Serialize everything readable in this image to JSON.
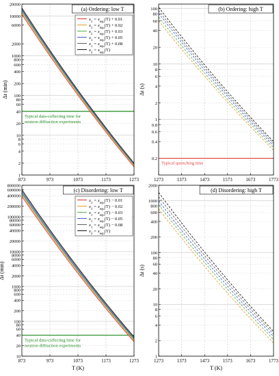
{
  "chart_data": [
    {
      "id": "a",
      "type": "line",
      "title": "(a) Ordering: low T",
      "xlabel": "T (K)",
      "ylabel": "Δt (min)",
      "xlim": [
        873,
        1273
      ],
      "ylim": [
        1,
        20000
      ],
      "yscale": "log",
      "xticks": [
        "873",
        "973",
        "1073",
        "1173",
        "1273"
      ],
      "yticks": [
        {
          "v": 1,
          "label": "1"
        },
        {
          "v": 2,
          "label": "2"
        },
        {
          "v": 4,
          "label": "4"
        },
        {
          "v": 6,
          "label": "6"
        },
        {
          "v": 8,
          "label": "8"
        },
        {
          "v": 10,
          "label": "10"
        },
        {
          "v": 20,
          "label": "20"
        },
        {
          "v": 40,
          "label": "40"
        },
        {
          "v": 60,
          "label": "60"
        },
        {
          "v": 80,
          "label": "80"
        },
        {
          "v": 100,
          "label": "100"
        },
        {
          "v": 200,
          "label": "200"
        },
        {
          "v": 400,
          "label": "400"
        },
        {
          "v": 600,
          "label": "600"
        },
        {
          "v": 800,
          "label": "800"
        },
        {
          "v": 1000,
          "label": "1000"
        },
        {
          "v": 2000,
          "label": "2000"
        },
        {
          "v": 6000,
          "label": "6000"
        },
        {
          "v": 10000,
          "label": "10000"
        },
        {
          "v": 20000,
          "label": "20000"
        }
      ],
      "legend": {
        "position": "top-right",
        "entries": [
          {
            "lhs": "x",
            "lsub": "1",
            "mid": " = x",
            "rsub": "equ",
            "rest": "(T) + 0.01",
            "color": "#e03c3c"
          },
          {
            "lhs": "x",
            "lsub": "1",
            "mid": " = x",
            "rsub": "equ",
            "rest": "(T) + 0.02",
            "color": "#e7a23c"
          },
          {
            "lhs": "x",
            "lsub": "1",
            "mid": " = x",
            "rsub": "equ",
            "rest": "(T) + 0.03",
            "color": "#5ab552"
          },
          {
            "lhs": "x",
            "lsub": "1",
            "mid": " = x",
            "rsub": "equ",
            "rest": "(T) + 0.05",
            "color": "#4d63d6"
          },
          {
            "lhs": "x",
            "lsub": "1",
            "mid": " = x",
            "rsub": "equ",
            "rest": "(T) + 0.08",
            "color": "#666666"
          },
          {
            "lhs": "x",
            "lsub": "2",
            "mid": " = x",
            "rsub": "equ",
            "rest": "(T)",
            "color": "#222222"
          }
        ]
      },
      "series": [
        {
          "color": "#e03c3c",
          "dashed": false,
          "x": [
            873,
            1273
          ],
          "y": [
            11000,
            1.6
          ]
        },
        {
          "color": "#e7a23c",
          "dashed": false,
          "x": [
            873,
            1273
          ],
          "y": [
            12000,
            1.7
          ]
        },
        {
          "color": "#5ab552",
          "dashed": false,
          "x": [
            873,
            1273
          ],
          "y": [
            13000,
            1.8
          ]
        },
        {
          "color": "#4d63d6",
          "dashed": false,
          "x": [
            873,
            1273
          ],
          "y": [
            14000,
            1.85
          ]
        },
        {
          "color": "#666666",
          "dashed": false,
          "x": [
            873,
            1273
          ],
          "y": [
            15000,
            1.9
          ]
        },
        {
          "color": "#222222",
          "dashed": false,
          "x": [
            873,
            1273
          ],
          "y": [
            16000,
            2.0
          ]
        }
      ],
      "reference": {
        "value": 40,
        "color": "#1e8a1e",
        "label": [
          "Typical data-collecting time for",
          "neutron diffraction experiments"
        ]
      }
    },
    {
      "id": "b",
      "type": "line",
      "title": "(b) Ordering: high T",
      "xlabel": "",
      "ylabel": "Δt (s)",
      "xlim": [
        1273,
        1773
      ],
      "ylim": [
        0.1,
        120
      ],
      "yscale": "log",
      "xticks": [
        "1273",
        "1373",
        "1473",
        "1573",
        "1673",
        "1773"
      ],
      "yticks": [
        {
          "v": 0.2,
          "label": "0.2"
        },
        {
          "v": 0.4,
          "label": "0.4"
        },
        {
          "v": 0.6,
          "label": "0.6"
        },
        {
          "v": 0.8,
          "label": "0.8"
        },
        {
          "v": 1,
          "label": "1"
        },
        {
          "v": 2,
          "label": "2"
        },
        {
          "v": 4,
          "label": "4"
        },
        {
          "v": 6,
          "label": "6"
        },
        {
          "v": 8,
          "label": "8"
        },
        {
          "v": 10,
          "label": "10"
        },
        {
          "v": 20,
          "label": "20"
        },
        {
          "v": 40,
          "label": "40"
        },
        {
          "v": 60,
          "label": "60"
        },
        {
          "v": 80,
          "label": "80"
        },
        {
          "v": 100,
          "label": "100"
        }
      ],
      "series": [
        {
          "color": "#e7a23c",
          "dashed": true,
          "x": [
            1273,
            1773
          ],
          "y": [
            60,
            0.28
          ]
        },
        {
          "color": "#5ab552",
          "dashed": true,
          "x": [
            1273,
            1773
          ],
          "y": [
            70,
            0.31
          ]
        },
        {
          "color": "#4d63d6",
          "dashed": true,
          "x": [
            1273,
            1773
          ],
          "y": [
            82,
            0.34
          ]
        },
        {
          "color": "#666666",
          "dashed": true,
          "x": [
            1273,
            1773
          ],
          "y": [
            92,
            0.37
          ]
        },
        {
          "color": "#222222",
          "dashed": true,
          "x": [
            1273,
            1773
          ],
          "y": [
            105,
            0.4
          ]
        }
      ],
      "reference": {
        "value": 0.2,
        "color": "#e03c3c",
        "label": [
          "Typical quenching time"
        ]
      }
    },
    {
      "id": "c",
      "type": "line",
      "title": "(c) Disordering: low T",
      "xlabel": "T (K)",
      "ylabel": "Δt (min)",
      "xlim": [
        873,
        1273
      ],
      "ylim": [
        10,
        800000
      ],
      "yscale": "log",
      "xticks": [
        "873",
        "973",
        "1073",
        "1173",
        "1273"
      ],
      "yticks": [
        {
          "v": 10,
          "label": "10"
        },
        {
          "v": 20,
          "label": "20"
        },
        {
          "v": 40,
          "label": "40"
        },
        {
          "v": 60,
          "label": "60"
        },
        {
          "v": 80,
          "label": "80"
        },
        {
          "v": 100,
          "label": "100"
        },
        {
          "v": 200,
          "label": "200"
        },
        {
          "v": 400,
          "label": "400"
        },
        {
          "v": 600,
          "label": "600"
        },
        {
          "v": 800,
          "label": "800"
        },
        {
          "v": 1000,
          "label": "1000"
        },
        {
          "v": 2000,
          "label": "2000"
        },
        {
          "v": 4000,
          "label": "4000"
        },
        {
          "v": 6000,
          "label": "6000"
        },
        {
          "v": 8000,
          "label": "8000"
        },
        {
          "v": 10000,
          "label": "10000"
        },
        {
          "v": 20000,
          "label": "20000"
        },
        {
          "v": 40000,
          "label": "40000"
        },
        {
          "v": 60000,
          "label": "60000"
        },
        {
          "v": 80000,
          "label": "80000"
        },
        {
          "v": 100000,
          "label": "100000"
        },
        {
          "v": 200000,
          "label": "200000"
        },
        {
          "v": 400000,
          "label": "400000"
        },
        {
          "v": 600000,
          "label": "600000"
        },
        {
          "v": 800000,
          "label": "800000"
        }
      ],
      "legend": {
        "position": "top-right",
        "entries": [
          {
            "lhs": "x",
            "lsub": "1",
            "mid": " = x",
            "rsub": "equ",
            "rest": "(T) − 0.01",
            "color": "#e03c3c"
          },
          {
            "lhs": "x",
            "lsub": "1",
            "mid": " = x",
            "rsub": "equ",
            "rest": "(T) − 0.02",
            "color": "#e7a23c"
          },
          {
            "lhs": "x",
            "lsub": "1",
            "mid": " = x",
            "rsub": "equ",
            "rest": "(T) − 0.03",
            "color": "#5ab552"
          },
          {
            "lhs": "x",
            "lsub": "1",
            "mid": " = x",
            "rsub": "equ",
            "rest": "(T) − 0.05",
            "color": "#4d63d6"
          },
          {
            "lhs": "x",
            "lsub": "1",
            "mid": " = x",
            "rsub": "equ",
            "rest": "(T) − 0.08",
            "color": "#666666"
          },
          {
            "lhs": "x",
            "lsub": "2",
            "mid": " = x",
            "rsub": "equ",
            "rest": "(T)",
            "color": "#222222"
          }
        ]
      },
      "series": [
        {
          "color": "#e03c3c",
          "dashed": false,
          "x": [
            873,
            1273
          ],
          "y": [
            380000,
            26
          ]
        },
        {
          "color": "#e7a23c",
          "dashed": false,
          "x": [
            873,
            1273
          ],
          "y": [
            420000,
            28
          ]
        },
        {
          "color": "#5ab552",
          "dashed": false,
          "x": [
            873,
            1273
          ],
          "y": [
            460000,
            30
          ]
        },
        {
          "color": "#4d63d6",
          "dashed": false,
          "x": [
            873,
            1273
          ],
          "y": [
            500000,
            32
          ]
        },
        {
          "color": "#666666",
          "dashed": false,
          "x": [
            873,
            1273
          ],
          "y": [
            550000,
            34
          ]
        },
        {
          "color": "#222222",
          "dashed": false,
          "x": [
            873,
            1273
          ],
          "y": [
            600000,
            36
          ]
        }
      ],
      "reference": {
        "value": 40,
        "color": "#1e8a1e",
        "label": [
          "Typical data-collecting time for",
          "neutron diffraction experiments"
        ]
      }
    },
    {
      "id": "d",
      "type": "line",
      "title": "(d) Disordering: high T",
      "xlabel": "T (K)",
      "ylabel": "Δt (s)",
      "xlim": [
        1273,
        1773
      ],
      "ylim": [
        1,
        2000
      ],
      "yscale": "log",
      "xticks": [
        "1273",
        "1373",
        "1473",
        "1573",
        "1673",
        "1773"
      ],
      "yticks": [
        {
          "v": 1,
          "label": "1"
        },
        {
          "v": 2,
          "label": "2"
        },
        {
          "v": 4,
          "label": "4"
        },
        {
          "v": 6,
          "label": "6"
        },
        {
          "v": 8,
          "label": "8"
        },
        {
          "v": 10,
          "label": "10"
        },
        {
          "v": 20,
          "label": "20"
        },
        {
          "v": 40,
          "label": "40"
        },
        {
          "v": 60,
          "label": "60"
        },
        {
          "v": 80,
          "label": "80"
        },
        {
          "v": 100,
          "label": "100"
        },
        {
          "v": 200,
          "label": "200"
        },
        {
          "v": 400,
          "label": "400"
        },
        {
          "v": 600,
          "label": "600"
        },
        {
          "v": 800,
          "label": "800"
        },
        {
          "v": 1000,
          "label": "1000"
        },
        {
          "v": 2000,
          "label": "2000"
        }
      ],
      "series": [
        {
          "color": "#e7a23c",
          "dashed": true,
          "x": [
            1273,
            1773
          ],
          "y": [
            700,
            1.8
          ]
        },
        {
          "color": "#5ab552",
          "dashed": true,
          "x": [
            1273,
            1773
          ],
          "y": [
            850,
            2.1
          ]
        },
        {
          "color": "#4d63d6",
          "dashed": true,
          "x": [
            1273,
            1773
          ],
          "y": [
            1000,
            2.4
          ]
        },
        {
          "color": "#666666",
          "dashed": true,
          "x": [
            1273,
            1773
          ],
          "y": [
            1200,
            2.7
          ]
        },
        {
          "color": "#222222",
          "dashed": true,
          "x": [
            1273,
            1773
          ],
          "y": [
            1450,
            3.0
          ]
        }
      ]
    }
  ]
}
